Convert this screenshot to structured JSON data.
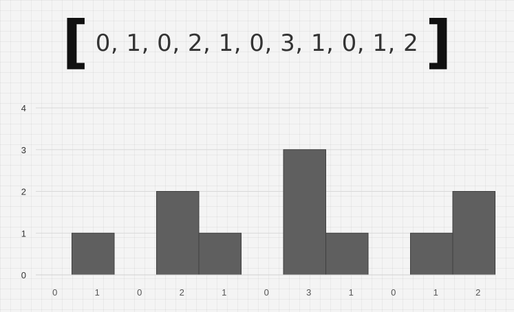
{
  "header": {
    "left_bracket": "[",
    "array_text": "0, 1, 0, 2, 1, 0, 3, 1, 0, 1, 2",
    "right_bracket": "]"
  },
  "chart_data": {
    "type": "bar",
    "categories": [
      "0",
      "1",
      "0",
      "2",
      "1",
      "0",
      "3",
      "1",
      "0",
      "1",
      "2"
    ],
    "values": [
      0,
      1,
      0,
      2,
      1,
      0,
      3,
      1,
      0,
      1,
      2
    ],
    "title": "",
    "xlabel": "",
    "ylabel": "",
    "ylim": [
      0,
      4
    ],
    "yticks": [
      "0",
      "1",
      "2",
      "3",
      "4"
    ],
    "grid": true,
    "bar_color": "#5f5f5f"
  }
}
